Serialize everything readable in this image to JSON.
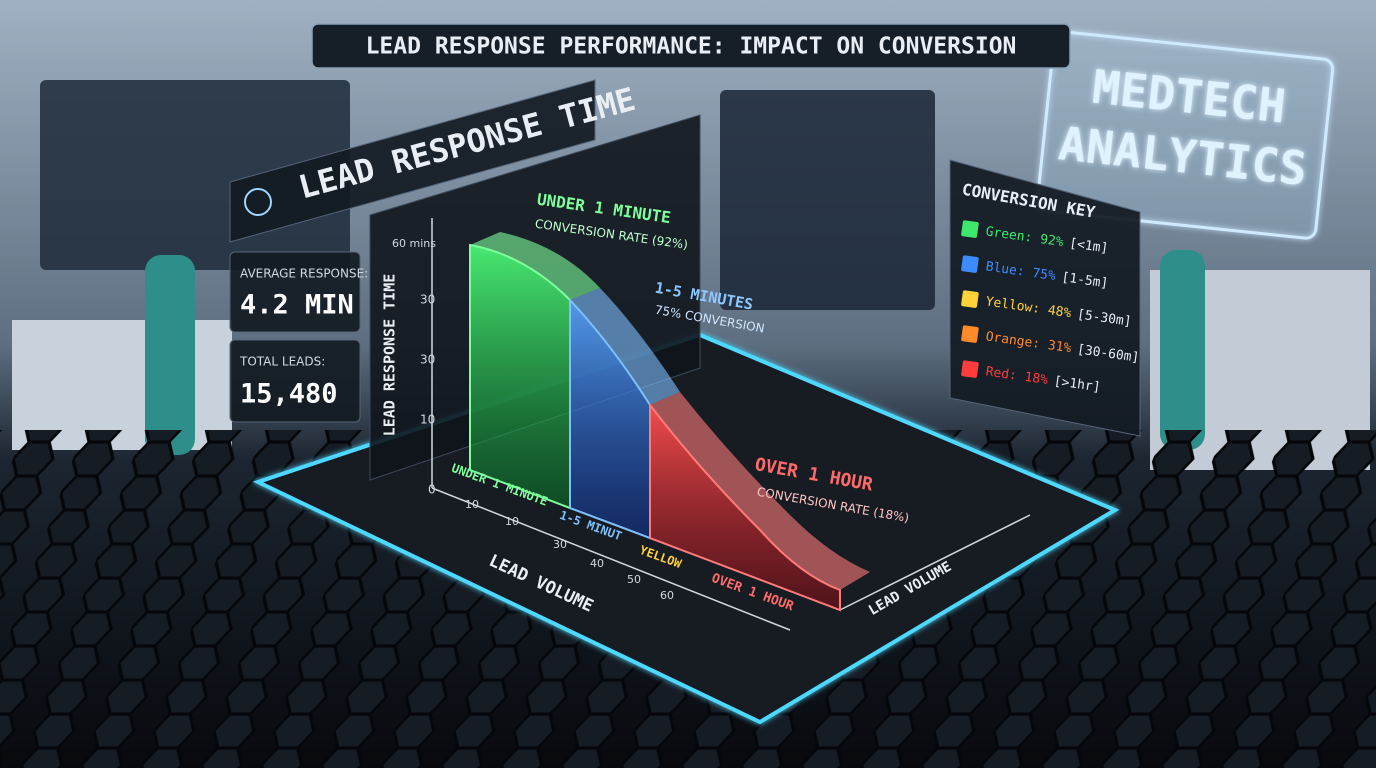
{
  "header": {
    "title": "LEAD RESPONSE PERFORMANCE: IMPACT ON CONVERSION"
  },
  "brand": {
    "line1": "MEDTECH",
    "line2": "ANALYTICS"
  },
  "panel": {
    "title": "LEAD RESPONSE TIME"
  },
  "stats": [
    {
      "label": "AVERAGE RESPONSE:",
      "value": "4.2 MIN"
    },
    {
      "label": "TOTAL LEADS:",
      "value": "15,480"
    }
  ],
  "chart": {
    "y_label": "LEAD RESPONSE TIME",
    "y_ticks": [
      "60 mins",
      "30",
      "30",
      "10",
      "0"
    ],
    "x_ticks": [
      "10",
      "10",
      "30",
      "40",
      "50",
      "60"
    ],
    "x_labels": [
      "UNDER 1 MINUTE",
      "1-5 MINUT",
      "YELLOW",
      "OVER 1 HOUR"
    ],
    "x_title": "LEAD VOLUME",
    "x_title_right": "LEAD VOLUME",
    "annotations": [
      {
        "title": "UNDER 1 MINUTE",
        "text": "CONVERSION RATE (92%)"
      },
      {
        "title": "1-5 MINUTES",
        "text": "75% CONVERSION"
      },
      {
        "title": "OVER 1 HOUR",
        "text": "CONVERSION RATE (18%)"
      }
    ]
  },
  "key": {
    "title": "CONVERSION KEY",
    "rows": [
      {
        "name": "Green:",
        "rate": "92%",
        "range": "[<1m]"
      },
      {
        "name": "Blue:",
        "rate": "75%",
        "range": "[1-5m]"
      },
      {
        "name": "Yellow:",
        "rate": "48%",
        "range": "[5-30m]"
      },
      {
        "name": "Orange:",
        "rate": "31%",
        "range": "[30-60m]"
      },
      {
        "name": "Red:",
        "rate": "18%",
        "range": "[>1hr]"
      }
    ]
  }
}
